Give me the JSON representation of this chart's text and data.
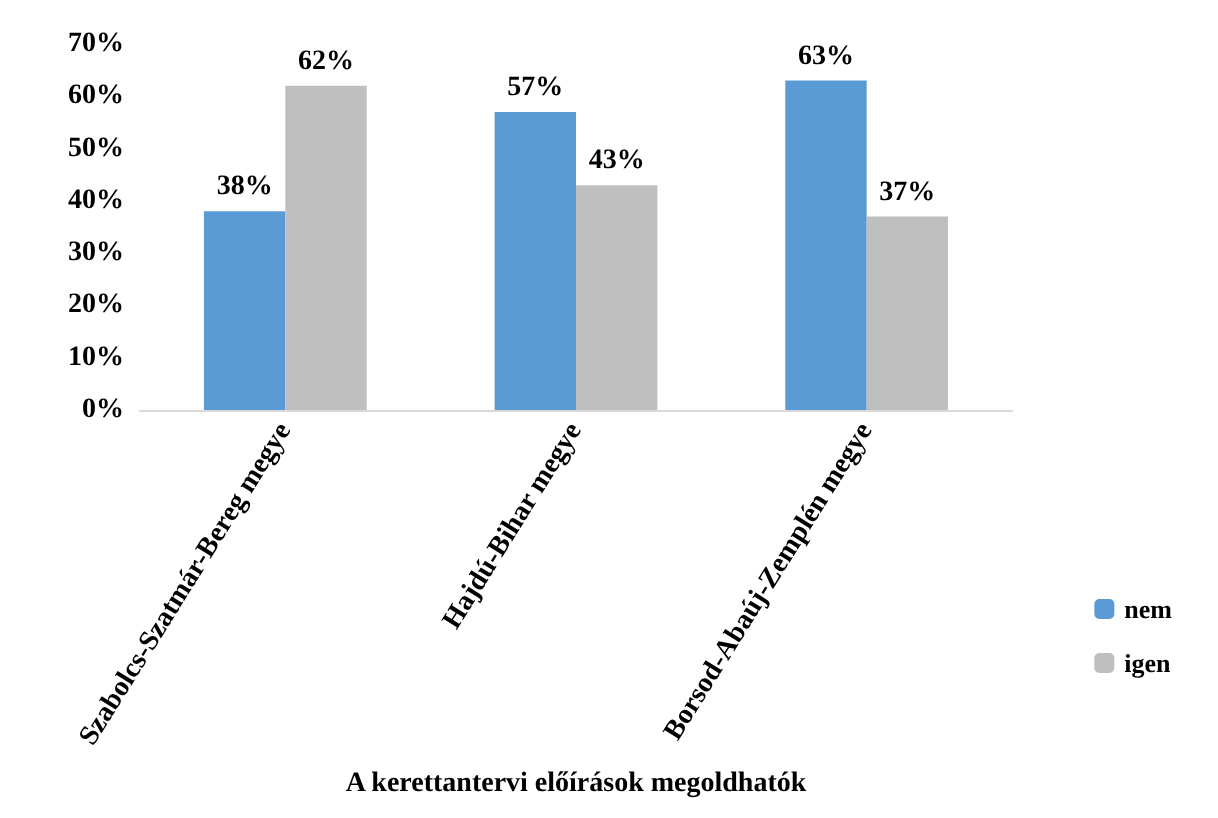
{
  "chart_data": {
    "type": "bar",
    "xlabel": "A kerettantervi előírások megoldhatók",
    "categories": [
      "Szabolcs-Szatmár-Bereg megye",
      "Hajdú-Bihar megye",
      "Borsod-Abaúj-Zemplén megye"
    ],
    "series": [
      {
        "name": "nem",
        "color": "#5b9bd5",
        "values": [
          38,
          57,
          63
        ],
        "value_labels": [
          "38%",
          "57%",
          "63%"
        ]
      },
      {
        "name": "igen",
        "color": "#bfbfbf",
        "values": [
          62,
          43,
          37
        ],
        "value_labels": [
          "62%",
          "43%",
          "37%"
        ]
      }
    ],
    "ylim": [
      0,
      70
    ],
    "yticks": [
      {
        "value": 0,
        "label": "0%"
      },
      {
        "value": 10,
        "label": "10%"
      },
      {
        "value": 20,
        "label": "20%"
      },
      {
        "value": 30,
        "label": "30%"
      },
      {
        "value": 40,
        "label": "40%"
      },
      {
        "value": 50,
        "label": "50%"
      },
      {
        "value": 60,
        "label": "60%"
      },
      {
        "value": 70,
        "label": "70%"
      }
    ],
    "grid": false,
    "legend": "right"
  }
}
